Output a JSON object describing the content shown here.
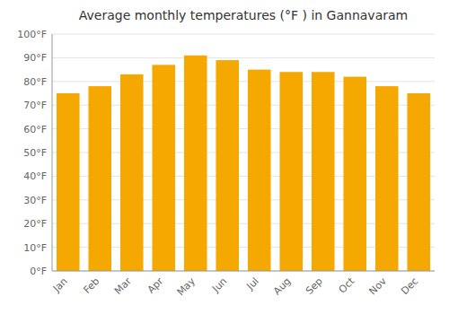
{
  "chart_data": {
    "type": "bar",
    "title": "Average monthly temperatures (°F ) in Gannavaram",
    "categories": [
      "Jan",
      "Feb",
      "Mar",
      "Apr",
      "May",
      "Jun",
      "Jul",
      "Aug",
      "Sep",
      "Oct",
      "Nov",
      "Dec"
    ],
    "values": [
      75,
      78,
      83,
      87,
      91,
      89,
      85,
      84,
      84,
      82,
      78,
      75
    ],
    "color": "#F5A800",
    "ylim": [
      0,
      100
    ],
    "yticks": [
      {
        "value": 0,
        "label": "0°F"
      },
      {
        "value": 10,
        "label": "10°F"
      },
      {
        "value": 20,
        "label": "20°F"
      },
      {
        "value": 30,
        "label": "30°F"
      },
      {
        "value": 40,
        "label": "40°F"
      },
      {
        "value": 50,
        "label": "50°F"
      },
      {
        "value": 60,
        "label": "60°F"
      },
      {
        "value": 70,
        "label": "70°F"
      },
      {
        "value": 80,
        "label": "80°F"
      },
      {
        "value": 90,
        "label": "90°F"
      },
      {
        "value": 100,
        "label": "100°F"
      }
    ],
    "grid": true
  }
}
